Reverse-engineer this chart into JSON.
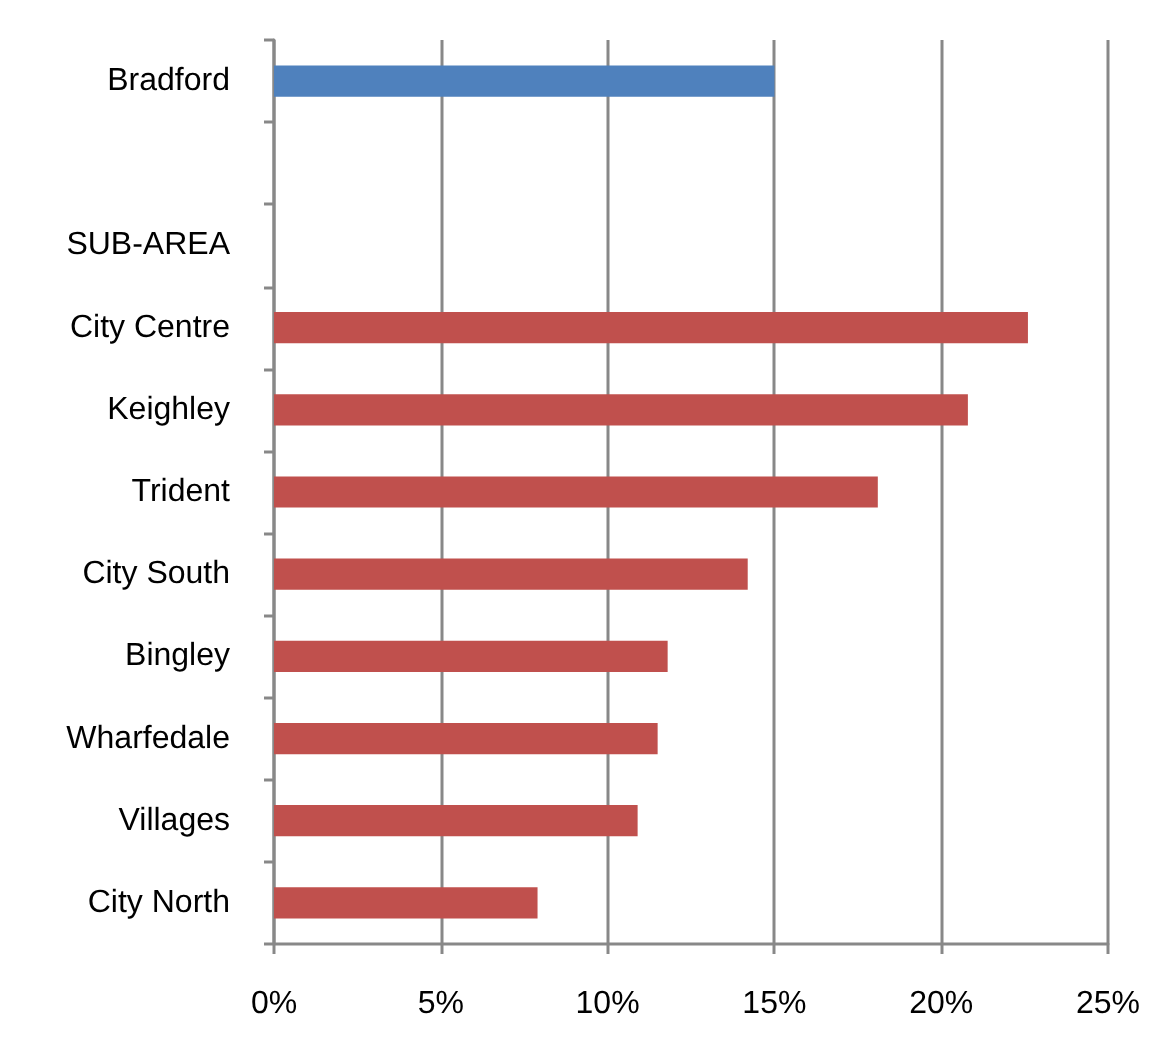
{
  "chart_data": {
    "type": "bar",
    "orientation": "horizontal",
    "categories": [
      "Bradford",
      null,
      "SUB-AREA",
      "City Centre",
      "Keighley",
      "Trident",
      "City South",
      "Bingley",
      "Wharfedale",
      "Villages",
      "City North"
    ],
    "values": [
      15.0,
      null,
      null,
      22.6,
      20.8,
      18.1,
      14.2,
      11.8,
      11.5,
      10.9,
      7.9
    ],
    "colors": [
      "#4f81bd",
      null,
      null,
      "#c0504d",
      "#c0504d",
      "#c0504d",
      "#c0504d",
      "#c0504d",
      "#c0504d",
      "#c0504d",
      "#c0504d"
    ],
    "xlim": [
      0,
      25
    ],
    "xticks": [
      {
        "value": 0,
        "label": "0%"
      },
      {
        "value": 5,
        "label": "5%"
      },
      {
        "value": 10,
        "label": "10%"
      },
      {
        "value": 15,
        "label": "15%"
      },
      {
        "value": 20,
        "label": "20%"
      },
      {
        "value": 25,
        "label": "25%"
      }
    ],
    "grid": "x"
  }
}
